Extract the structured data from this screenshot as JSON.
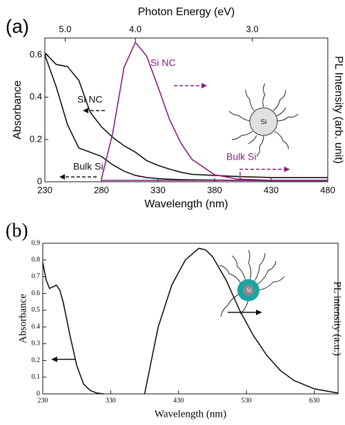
{
  "chart_data": [
    {
      "type": "line",
      "panel_label": "(a)",
      "x2label": "Photon Energy (eV)",
      "x2ticks": [
        {
          "value": 5,
          "label": "5.0"
        },
        {
          "value": 4,
          "label": "4.0"
        },
        {
          "value": 3,
          "label": "3.0"
        }
      ],
      "xlabel": "Wavelength (nm)",
      "ylabel": "Absorbance",
      "y2label": "PL Intensity (arb. unit)",
      "xlim": [
        230,
        480
      ],
      "xticks": [
        230,
        280,
        330,
        380,
        430,
        480
      ],
      "ylim": [
        0,
        0.68
      ],
      "yticks": [
        0,
        0.2,
        0.4,
        0.6
      ],
      "y2lim": [
        0,
        1.03
      ],
      "icon_label": "Si",
      "series": [
        {
          "name": "Si NC",
          "color": "#111111",
          "x": [
            230,
            240,
            250,
            260,
            270,
            280,
            290,
            300,
            310,
            320,
            330,
            340,
            350,
            360,
            380,
            400,
            430,
            480
          ],
          "values": [
            0.61,
            0.555,
            0.545,
            0.48,
            0.33,
            0.26,
            0.21,
            0.17,
            0.14,
            0.1,
            0.077,
            0.06,
            0.045,
            0.035,
            0.03,
            0.025,
            0.02,
            0.02
          ]
        },
        {
          "name": "Bulk Si",
          "color": "#111111",
          "x": [
            230,
            240,
            250,
            260,
            270,
            280,
            290,
            300,
            310,
            320,
            330,
            340,
            350,
            360,
            380,
            400,
            430,
            480
          ],
          "values": [
            0.6,
            0.45,
            0.27,
            0.16,
            0.14,
            0.12,
            0.08,
            0.05,
            0.03,
            0.02,
            0.015,
            0.012,
            0.01,
            0.009,
            0.008,
            0.007,
            0.005,
            0.005
          ]
        },
        {
          "name": "Si NC",
          "color": "#8b1a7f",
          "axis": "y2",
          "x": [
            280,
            290,
            300,
            310,
            320,
            330,
            340,
            350,
            360,
            380,
            400,
            430,
            480
          ],
          "values": [
            0.02,
            0.35,
            0.82,
            1.0,
            0.9,
            0.68,
            0.45,
            0.28,
            0.16,
            0.05,
            0.02,
            0.01,
            0.01
          ]
        },
        {
          "name": "Bulk Si",
          "color": "#8b1a7f",
          "axis": "y2",
          "x": [
            280,
            330,
            380,
            430,
            480
          ],
          "values": [
            0.01,
            0.01,
            0.01,
            0.01,
            0.01
          ]
        }
      ]
    },
    {
      "type": "line",
      "panel_label": "(b)",
      "xlabel": "Wavelength (nm)",
      "ylabel": "Absorbance",
      "y2label": "PL intensity (a.u.)",
      "xlim": [
        230,
        665
      ],
      "xticks": [
        230,
        330,
        430,
        530,
        630
      ],
      "ylim": [
        0,
        0.9
      ],
      "yticks": [
        0,
        0.1,
        0.2,
        0.3,
        0.4,
        0.5,
        0.6,
        0.7,
        0.8,
        0.9
      ],
      "y2lim": [
        0,
        0.9
      ],
      "icon_label": "Si",
      "series": [
        {
          "color": "#111111",
          "x": [
            230,
            235,
            240,
            250,
            255,
            260,
            270,
            280,
            290,
            300,
            310,
            320
          ],
          "values": [
            0.785,
            0.68,
            0.63,
            0.65,
            0.62,
            0.55,
            0.35,
            0.17,
            0.06,
            0.02,
            0.005,
            0
          ]
        },
        {
          "color": "#111111",
          "axis": "y2",
          "x": [
            380,
            390,
            400,
            420,
            440,
            460,
            470,
            480,
            500,
            520,
            540,
            560,
            580,
            600,
            630,
            665
          ],
          "values": [
            0,
            0.2,
            0.4,
            0.65,
            0.8,
            0.87,
            0.86,
            0.82,
            0.68,
            0.5,
            0.35,
            0.23,
            0.14,
            0.08,
            0.03,
            0.005
          ]
        }
      ]
    }
  ]
}
